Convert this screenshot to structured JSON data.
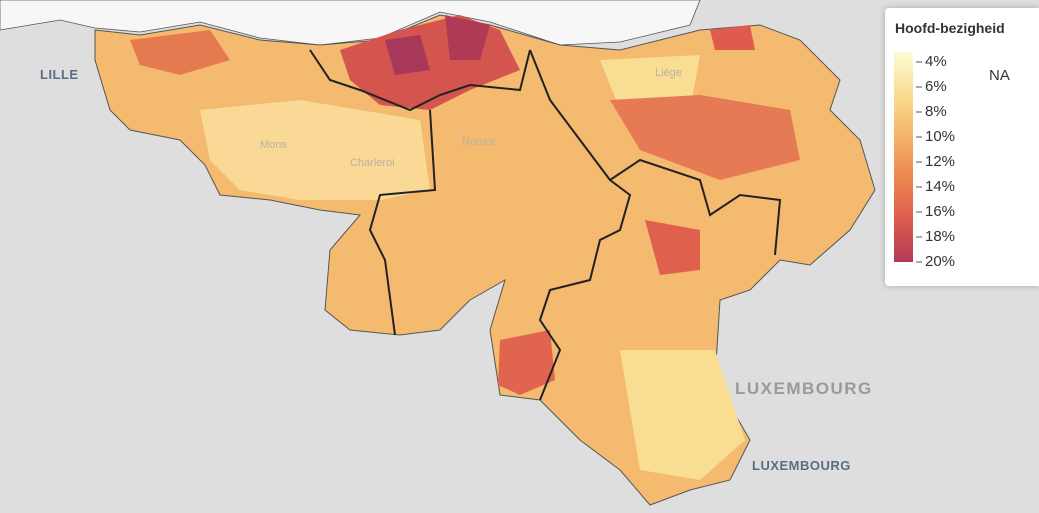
{
  "map": {
    "places": [
      "LILLE",
      "Mons",
      "Charleroi",
      "Namur",
      "Liège",
      "LUXEMBOURG",
      "LUXEMBOURG"
    ],
    "legend": {
      "title": "Hoofd-bezigheid",
      "range": [
        3.2,
        20
      ],
      "ticks": [
        {
          "value": 4,
          "label": "4%"
        },
        {
          "value": 6,
          "label": "6%"
        },
        {
          "value": 8,
          "label": "8%"
        },
        {
          "value": 10,
          "label": "10%"
        },
        {
          "value": 12,
          "label": "12%"
        },
        {
          "value": 14,
          "label": "14%"
        },
        {
          "value": 16,
          "label": "16%"
        },
        {
          "value": 18,
          "label": "18%"
        },
        {
          "value": 20,
          "label": "20%"
        }
      ],
      "colors": [
        "#fffbd6",
        "#f9dd92",
        "#f4b468",
        "#ec8650",
        "#de5b4d",
        "#b03a55"
      ],
      "na_label": "NA"
    }
  }
}
